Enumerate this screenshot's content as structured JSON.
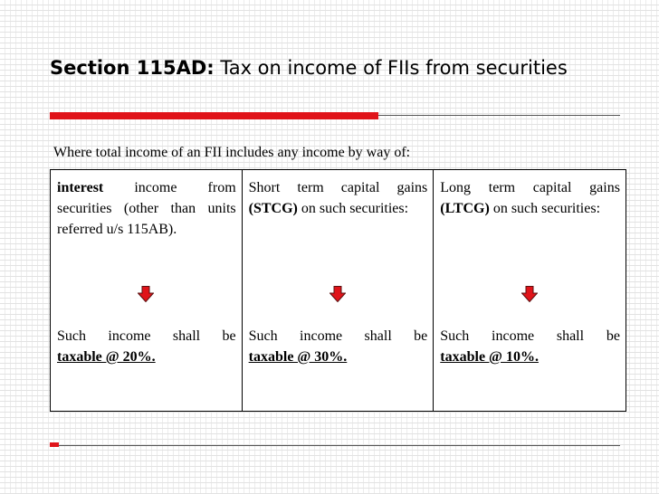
{
  "title": {
    "bold": "Section 115AD:",
    "rest": "Tax on income of FIIs from securities"
  },
  "intro": "Where total income of an FII includes any income by way of:",
  "columns": [
    {
      "lead_bold": "interest",
      "lead_rest": "income from securities (other than units referred u/s 115AB).",
      "result_text": "Such income shall be",
      "result_rate": "taxable @ 20%."
    },
    {
      "lead_text": "Short term capital gains",
      "lead_bold": "(STCG)",
      "lead_rest": "on such securities:",
      "result_text": "Such income shall be",
      "result_rate": "taxable @ 30%."
    },
    {
      "lead_text": "Long term capital gains",
      "lead_bold": "(LTCG)",
      "lead_rest": "on such securities:",
      "result_text": "Such income shall be",
      "result_rate": "taxable @ 10%."
    }
  ]
}
